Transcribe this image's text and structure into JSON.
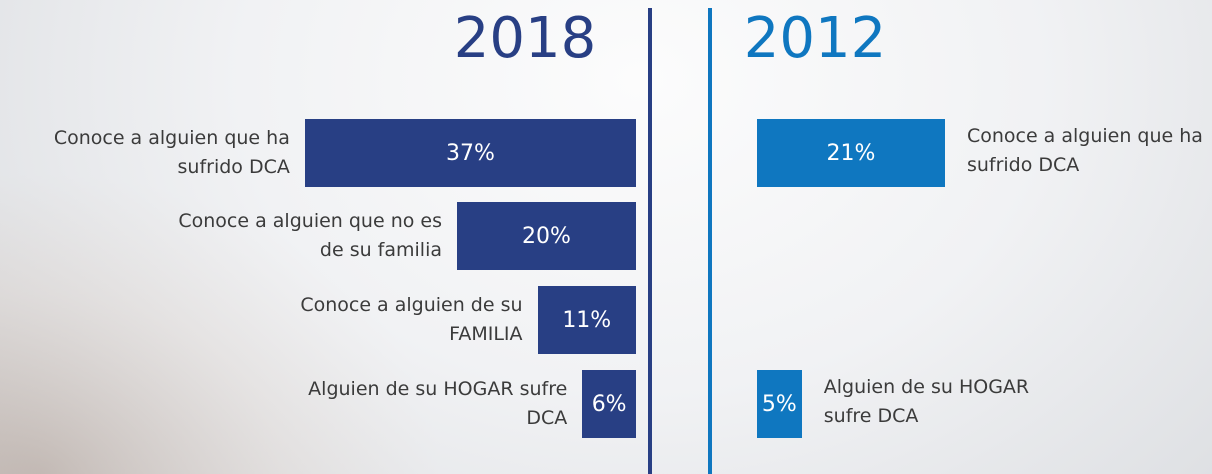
{
  "chart_data": [
    {
      "type": "hbar-left",
      "title": "2018",
      "color": "#283f84",
      "categories": [
        "Conoce a alguien que ha sufrido DCA",
        "Conoce a alguien que no es de su familia",
        "Conoce a alguien de su FAMILIA",
        "Alguien de su HOGAR sufre DCA"
      ],
      "values": [
        37,
        20,
        11,
        6
      ],
      "value_labels": [
        "37%",
        "20%",
        "11%",
        "6%"
      ]
    },
    {
      "type": "hbar-right",
      "title": "2012",
      "color": "#0f77c0",
      "categories": [
        "Conoce a alguien que ha sufrido DCA",
        null,
        null,
        "Alguien de su HOGAR sufre DCA"
      ],
      "values": [
        21,
        null,
        null,
        5
      ],
      "value_labels": [
        "21%",
        null,
        null,
        "5%"
      ]
    }
  ]
}
